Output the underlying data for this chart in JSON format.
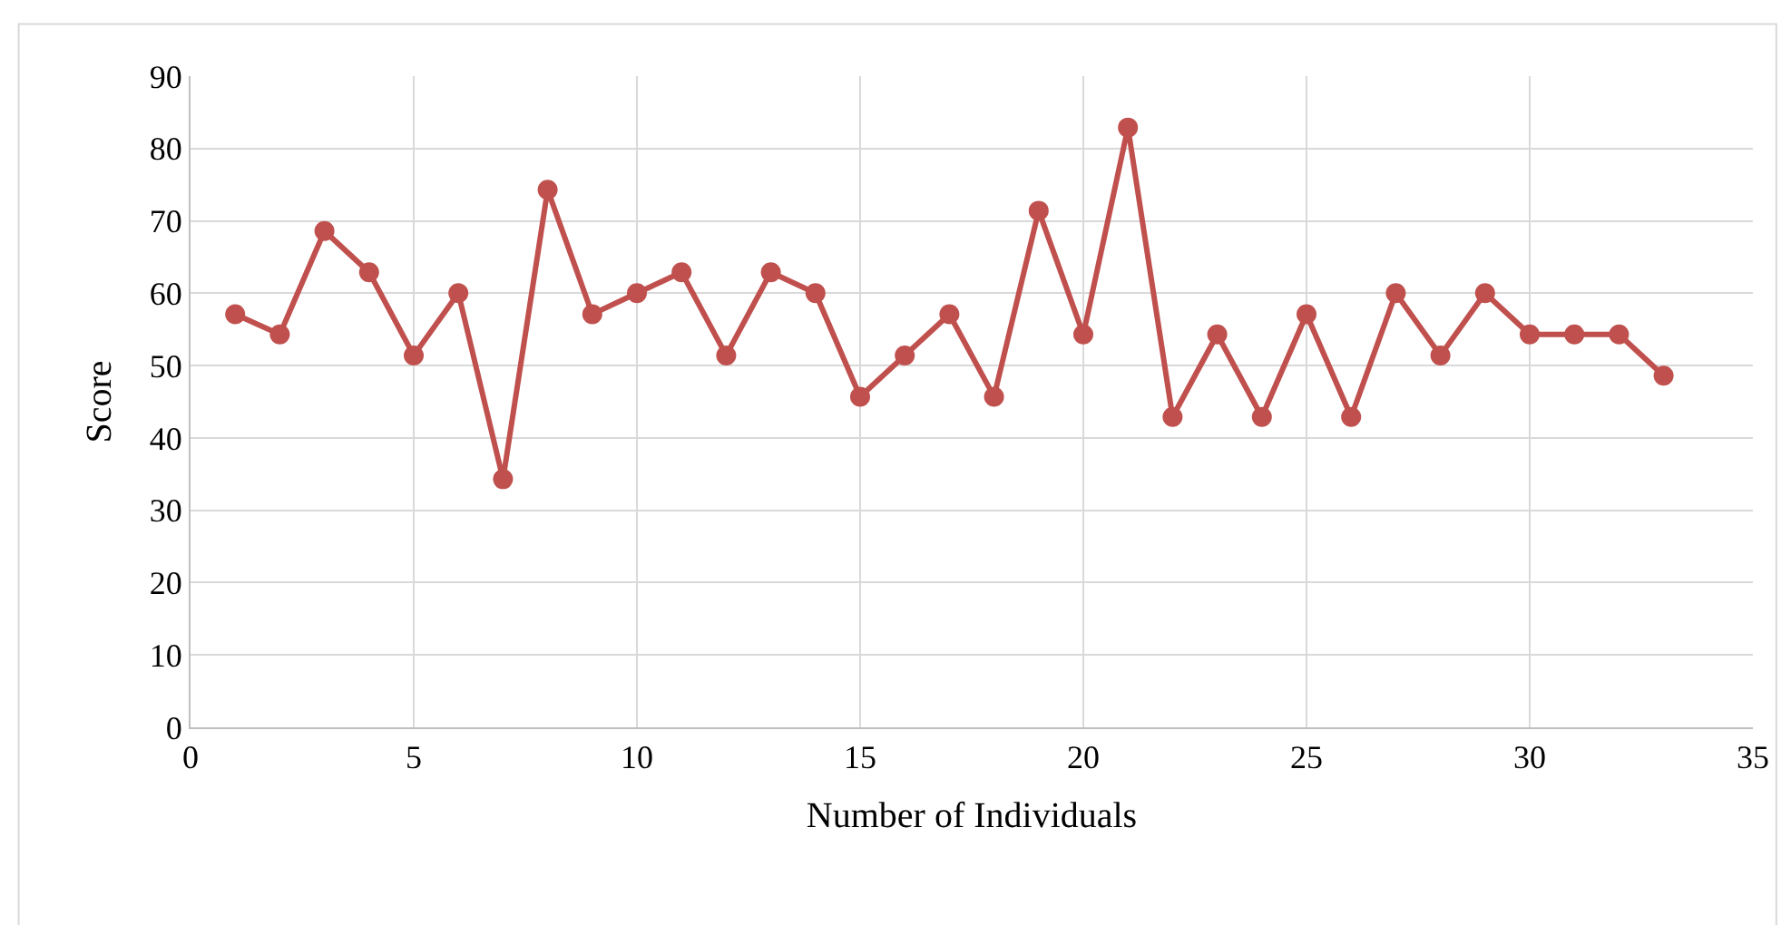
{
  "chart_data": {
    "type": "line",
    "xlabel": "Number of Individuals",
    "ylabel": "Score",
    "x": [
      1,
      2,
      3,
      4,
      5,
      6,
      7,
      8,
      9,
      10,
      11,
      12,
      13,
      14,
      15,
      16,
      17,
      18,
      19,
      20,
      21,
      22,
      23,
      24,
      25,
      26,
      27,
      28,
      29,
      30,
      31,
      32,
      33
    ],
    "series": [
      {
        "color": "#c0504d",
        "values": [
          57.1,
          54.3,
          68.6,
          62.9,
          51.4,
          60,
          34.3,
          74.3,
          57.1,
          60,
          62.9,
          51.4,
          62.9,
          60,
          45.7,
          51.4,
          57.1,
          45.7,
          71.4,
          54.3,
          82.9,
          42.9,
          54.3,
          42.9,
          57.1,
          42.9,
          60,
          51.4,
          60,
          54.3,
          54.3,
          54.3,
          48.6
        ]
      }
    ],
    "xlim": [
      0,
      35
    ],
    "xticks": [
      0,
      5,
      10,
      15,
      20,
      25,
      30,
      35
    ],
    "ylim": [
      0,
      90
    ],
    "yticks": [
      0,
      10,
      20,
      30,
      40,
      50,
      60,
      70,
      80,
      90
    ],
    "grid": true,
    "marker": "circle",
    "line_style": "solid"
  }
}
